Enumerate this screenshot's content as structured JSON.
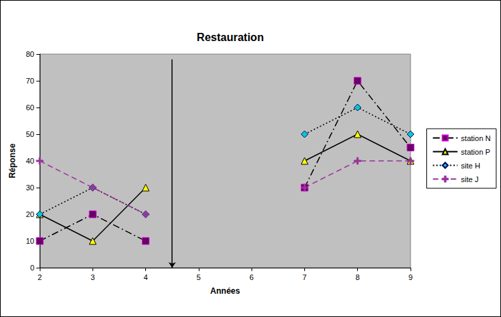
{
  "chart_data": {
    "type": "line",
    "title": "Restauration",
    "x_label": "Années",
    "y_label": "Réponse",
    "x": [
      2,
      3,
      4,
      5,
      6,
      7,
      8,
      9
    ],
    "series": [
      {
        "name": "station N",
        "color": "#000000",
        "marker": "square",
        "line_style": "dashdot",
        "values": [
          10,
          20,
          10,
          null,
          null,
          30,
          70,
          45
        ]
      },
      {
        "name": "station P",
        "color": "#000000",
        "marker": "triangle",
        "line_style": "solid",
        "values": [
          20,
          10,
          30,
          null,
          null,
          40,
          50,
          40
        ]
      },
      {
        "name": "site H",
        "color": "#000000",
        "marker": "diamond",
        "line_style": "dotted",
        "values": [
          20,
          30,
          20,
          null,
          null,
          50,
          60,
          50
        ]
      },
      {
        "name": "site J",
        "color": "#993399",
        "marker": "plus",
        "line_style": "dashed",
        "values": [
          40,
          30,
          20,
          null,
          null,
          30,
          40,
          40
        ]
      }
    ],
    "xlim": [
      2,
      9
    ],
    "xticks": [
      2,
      3,
      4,
      5,
      6,
      7,
      8,
      9
    ],
    "ylim": [
      0,
      80
    ],
    "yticks": [
      0,
      10,
      20,
      30,
      40,
      50,
      60,
      70,
      80
    ],
    "grid": false,
    "legend": "right",
    "annotations": [
      {
        "type": "arrow",
        "x": 4.5,
        "y": [
          78,
          0
        ]
      }
    ]
  }
}
